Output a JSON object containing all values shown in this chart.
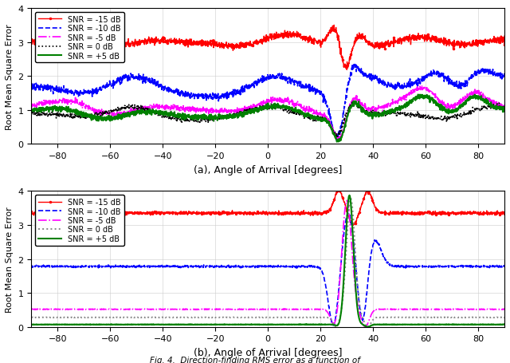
{
  "subplot_a_xlabel": "(a), Angle of Arrival [degrees]",
  "subplot_b_xlabel": "(b), Angle of Arrival [degrees]",
  "ylabel": "Root Mean Square Error",
  "xlim": [
    -90,
    90
  ],
  "ylim_a": [
    0,
    4
  ],
  "ylim_b": [
    0,
    4
  ],
  "xticks": [
    -80,
    -60,
    -40,
    -20,
    0,
    20,
    40,
    60,
    80
  ],
  "yticks": [
    0,
    1,
    2,
    3,
    4
  ],
  "snr_labels": [
    "SNR = -15 dB",
    "SNR = -10 dB",
    "SNR = -5 dB",
    "SNR = 0 dB",
    "SNR = +5 dB"
  ],
  "colors": [
    "red",
    "blue",
    "magenta",
    "black",
    "green"
  ],
  "base_levels_a": [
    3.0,
    1.65,
    1.05,
    0.88,
    0.88
  ],
  "base_levels_b": [
    3.35,
    1.78,
    0.52,
    0.28,
    0.07
  ],
  "wave_amp_a": [
    0.12,
    0.2,
    0.15,
    0.13,
    0.13
  ],
  "noise_amp_a": [
    0.05,
    0.05,
    0.04,
    0.035,
    0.035
  ],
  "noise_amp_b": [
    0.025,
    0.015,
    0.004,
    0.003,
    0.003
  ],
  "fig_caption": "Fig. 4.  Direction-finding RMS error as a function of"
}
